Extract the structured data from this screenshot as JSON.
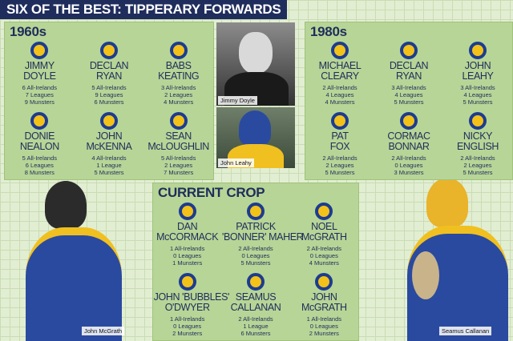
{
  "title": "SIX OF THE BEST: TIPPERARY FORWARDS",
  "panels": [
    {
      "title": "1960s",
      "players": [
        {
          "name": [
            "JIMMY",
            "DOYLE"
          ],
          "stats": [
            "6 All-Irelands",
            "7 Leagues",
            "9 Munsters"
          ]
        },
        {
          "name": [
            "DECLAN",
            "RYAN"
          ],
          "stats": [
            "5 All-Irelands",
            "9 Leagues",
            "6 Munsters"
          ]
        },
        {
          "name": [
            "BABS",
            "KEATING"
          ],
          "stats": [
            "3 All-Irelands",
            "2 Leagues",
            "4 Munsters"
          ]
        },
        {
          "name": [
            "DONIE",
            "NEALON"
          ],
          "stats": [
            "5 All-Irelands",
            "6 Leagues",
            "8 Munsters"
          ]
        },
        {
          "name": [
            "JOHN",
            "McKENNA"
          ],
          "stats": [
            "4 All-Irelands",
            "1 League",
            "5 Munsters"
          ]
        },
        {
          "name": [
            "SEAN",
            "McLOUGHLIN"
          ],
          "stats": [
            "5 All-Irelands",
            "2 Leagues",
            "7 Munsters"
          ]
        }
      ]
    },
    {
      "title": "1980s",
      "players": [
        {
          "name": [
            "MICHAEL",
            "CLEARY"
          ],
          "stats": [
            "2 All-Irelands",
            "4 Leagues",
            "4 Munsters"
          ]
        },
        {
          "name": [
            "DECLAN",
            "RYAN"
          ],
          "stats": [
            "3 All-Irelands",
            "4 Leagues",
            "5 Munsters"
          ]
        },
        {
          "name": [
            "JOHN",
            "LEAHY"
          ],
          "stats": [
            "3 All-Irelands",
            "4 Leagues",
            "5 Munsters"
          ]
        },
        {
          "name": [
            "PAT",
            "FOX"
          ],
          "stats": [
            "2 All-Irelands",
            "2 Leagues",
            "5 Munsters"
          ]
        },
        {
          "name": [
            "CORMAC",
            "BONNAR"
          ],
          "stats": [
            "2 All-Irelands",
            "0 Leagues",
            "3 Munsters"
          ]
        },
        {
          "name": [
            "NICKY",
            "ENGLISH"
          ],
          "stats": [
            "2 All-Irelands",
            "2 Leagues",
            "5 Munsters"
          ]
        }
      ]
    },
    {
      "title": "CURRENT CROP",
      "players": [
        {
          "name": [
            "DAN",
            "McCORMACK"
          ],
          "stats": [
            "1 All-Irelands",
            "0 Leagues",
            "1 Munsters"
          ]
        },
        {
          "name": [
            "PATRICK",
            "'BONNER' MAHER"
          ],
          "stats": [
            "2 All-Irelands",
            "0 Leagues",
            "5 Munsters"
          ]
        },
        {
          "name": [
            "NOEL",
            "McGRATH"
          ],
          "stats": [
            "2 All-Irelands",
            "0 Leagues",
            "4 Munsters"
          ]
        },
        {
          "name": [
            "JOHN 'BUBBLES'",
            "O'DWYER"
          ],
          "stats": [
            "1 All-Irelands",
            "0 Leagues",
            "2 Munsters"
          ]
        },
        {
          "name": [
            "SEAMUS",
            "CALLANAN"
          ],
          "stats": [
            "2 All-Irelands",
            "1 League",
            "6 Munsters"
          ]
        },
        {
          "name": [
            "JOHN",
            "McGRATH"
          ],
          "stats": [
            "1 All-Irelands",
            "0 Leagues",
            "2 Munsters"
          ]
        }
      ]
    }
  ],
  "photos": [
    "Jimmy Doyle",
    "John Leahy",
    "John McGrath",
    "Seamus Callanan"
  ]
}
